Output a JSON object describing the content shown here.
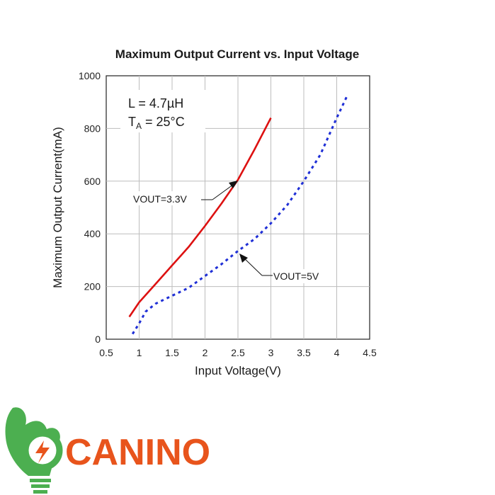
{
  "chart_data": {
    "type": "line",
    "title": "Maximum Output Current vs. Input Voltage",
    "xlabel": "Input Voltage(V)",
    "ylabel": "Maximum Output Current(mA)",
    "xlim": [
      0.5,
      4.5
    ],
    "ylim": [
      0,
      1000
    ],
    "xticks": [
      "0.5",
      "1",
      "1.5",
      "2",
      "2.5",
      "3",
      "3.5",
      "4",
      "4.5"
    ],
    "yticks": [
      "0",
      "200",
      "400",
      "600",
      "800",
      "1000"
    ],
    "grid": true,
    "annotation": {
      "inductance": "L = 4.7µH",
      "temp_prefix": "T",
      "temp_sub": "A",
      "temp_suffix": " = 25°C"
    },
    "series": [
      {
        "name": "VOUT=3.3V",
        "color": "#dd1111",
        "style": "solid",
        "x": [
          0.85,
          1.0,
          1.25,
          1.5,
          1.75,
          2.0,
          2.25,
          2.5,
          2.75,
          3.0
        ],
        "y": [
          85,
          140,
          210,
          280,
          350,
          430,
          515,
          605,
          720,
          840
        ]
      },
      {
        "name": "VOUT=5V",
        "color": "#1f2fd6",
        "style": "dotted",
        "x": [
          0.9,
          1.0,
          1.1,
          1.25,
          1.5,
          1.75,
          2.0,
          2.25,
          2.5,
          2.75,
          3.0,
          3.25,
          3.5,
          3.75,
          4.0,
          4.15
        ],
        "y": [
          20,
          60,
          105,
          135,
          165,
          195,
          240,
          285,
          335,
          380,
          440,
          510,
          600,
          700,
          840,
          920
        ]
      }
    ]
  },
  "logo": {
    "text": "CANINO",
    "colors": {
      "green": "#4caf50",
      "orange": "#e8541c"
    }
  }
}
